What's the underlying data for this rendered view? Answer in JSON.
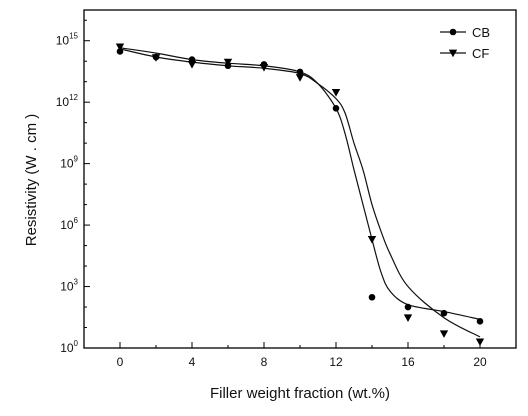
{
  "chart_data": {
    "type": "line",
    "xlabel": "Filler weight fraction (wt.%)",
    "ylabel": "Resistivity (W . cm )",
    "xlim": [
      -2,
      22
    ],
    "ylim_log10": [
      0,
      16.5
    ],
    "y_scale": "log",
    "x_ticks": [
      0,
      4,
      8,
      12,
      16,
      20
    ],
    "y_ticks": [
      {
        "exp": 0,
        "label": "10",
        "sup": "0"
      },
      {
        "exp": 3,
        "label": "10",
        "sup": "3"
      },
      {
        "exp": 6,
        "label": "10",
        "sup": "6"
      },
      {
        "exp": 9,
        "label": "10",
        "sup": "9"
      },
      {
        "exp": 12,
        "label": "10",
        "sup": "12"
      },
      {
        "exp": 15,
        "label": "10",
        "sup": "15"
      }
    ],
    "grid": false,
    "legend_position": "top-right",
    "series": [
      {
        "name": "CB",
        "marker": "circle",
        "x": [
          0,
          2,
          4,
          6,
          8,
          10,
          12,
          14,
          16,
          18,
          20
        ],
        "y": [
          300000000000000.0,
          160000000000000.0,
          120000000000000.0,
          60000000000000.0,
          70000000000000.0,
          30000000000000.0,
          500000000000.0,
          300,
          100,
          50,
          20
        ],
        "curve_x": [
          0,
          2,
          4,
          6,
          8,
          10,
          11,
          12,
          12.5,
          13,
          13.5,
          14,
          14.5,
          15,
          16,
          18,
          20
        ],
        "curve_y": [
          450000000000000.0,
          250000000000000.0,
          120000000000000.0,
          80000000000000.0,
          60000000000000.0,
          30000000000000.0,
          8000000000000.0,
          500000000000.0,
          30000000000.0,
          500000000.0,
          10000000.0,
          200000.0,
          5000.0,
          600.0,
          130.0,
          60.0,
          25.0
        ]
      },
      {
        "name": "CF",
        "marker": "triangle-down",
        "x": [
          0,
          2,
          4,
          6,
          8,
          10,
          12,
          14,
          16,
          18,
          20
        ],
        "y": [
          500000000000000.0,
          150000000000000.0,
          70000000000000.0,
          90000000000000.0,
          50000000000000.0,
          16000000000000.0,
          3000000000000.0,
          200000.0,
          30,
          5,
          2
        ],
        "curve_x": [
          0,
          2,
          4,
          6,
          8,
          10,
          11,
          12,
          12.5,
          13,
          13.5,
          14,
          14.5,
          15,
          16,
          18,
          20
        ],
        "curve_y": [
          400000000000000.0,
          160000000000000.0,
          90000000000000.0,
          60000000000000.0,
          45000000000000.0,
          25000000000000.0,
          8000000000000.0,
          1500000000000.0,
          300000000000.0,
          10000000000.0,
          500000000.0,
          10000000.0,
          500000.0,
          40000.0,
          1000.0,
          30.0,
          3.5
        ]
      }
    ]
  }
}
